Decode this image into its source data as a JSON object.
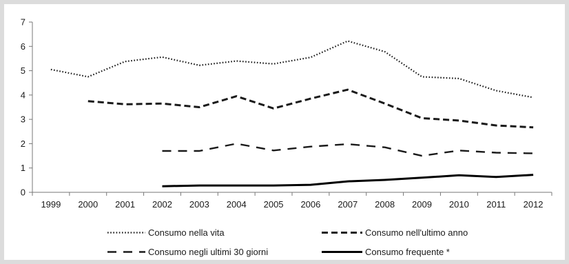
{
  "chart_data": {
    "type": "line",
    "x": [
      "1999",
      "2000",
      "2001",
      "2002",
      "2003",
      "2004",
      "2005",
      "2006",
      "2007",
      "2008",
      "2009",
      "2010",
      "2011",
      "2012"
    ],
    "ylim": [
      0,
      7
    ],
    "yticks": [
      0,
      1,
      2,
      3,
      4,
      5,
      6,
      7
    ],
    "grid": false,
    "legend_position": "bottom",
    "series": [
      {
        "name": "Consumo nella vita",
        "style": "dotted",
        "color": "#1a1a1a",
        "values": [
          5.05,
          4.75,
          5.38,
          5.56,
          5.22,
          5.4,
          5.28,
          5.55,
          6.22,
          5.78,
          4.75,
          4.68,
          4.18,
          3.9
        ]
      },
      {
        "name": "Consumo nell'ultimo anno",
        "style": "dashed",
        "color": "#1a1a1a",
        "values": [
          null,
          3.75,
          3.62,
          3.65,
          3.5,
          3.95,
          3.45,
          3.85,
          4.22,
          3.65,
          3.05,
          2.95,
          2.75,
          2.67
        ]
      },
      {
        "name": "Consumo negli ultimi 30 giorni",
        "style": "long-dashed",
        "color": "#1a1a1a",
        "values": [
          null,
          null,
          null,
          1.7,
          1.7,
          2.0,
          1.72,
          1.88,
          1.98,
          1.85,
          1.5,
          1.72,
          1.63,
          1.6
        ]
      },
      {
        "name": "Consumo frequente",
        "style": "solid",
        "color": "#000000",
        "values": [
          null,
          null,
          null,
          0.25,
          0.28,
          0.28,
          0.28,
          0.31,
          0.45,
          0.51,
          0.6,
          0.7,
          0.63,
          0.72
        ]
      }
    ]
  },
  "legend": [
    {
      "label": "Consumo nella vita",
      "marker": ""
    },
    {
      "label": "Consumo nell'ultimo anno",
      "marker": ""
    },
    {
      "label": "Consumo negli ultimi 30 giorni",
      "marker": ""
    },
    {
      "label": "Consumo frequente",
      "marker": "*"
    }
  ]
}
